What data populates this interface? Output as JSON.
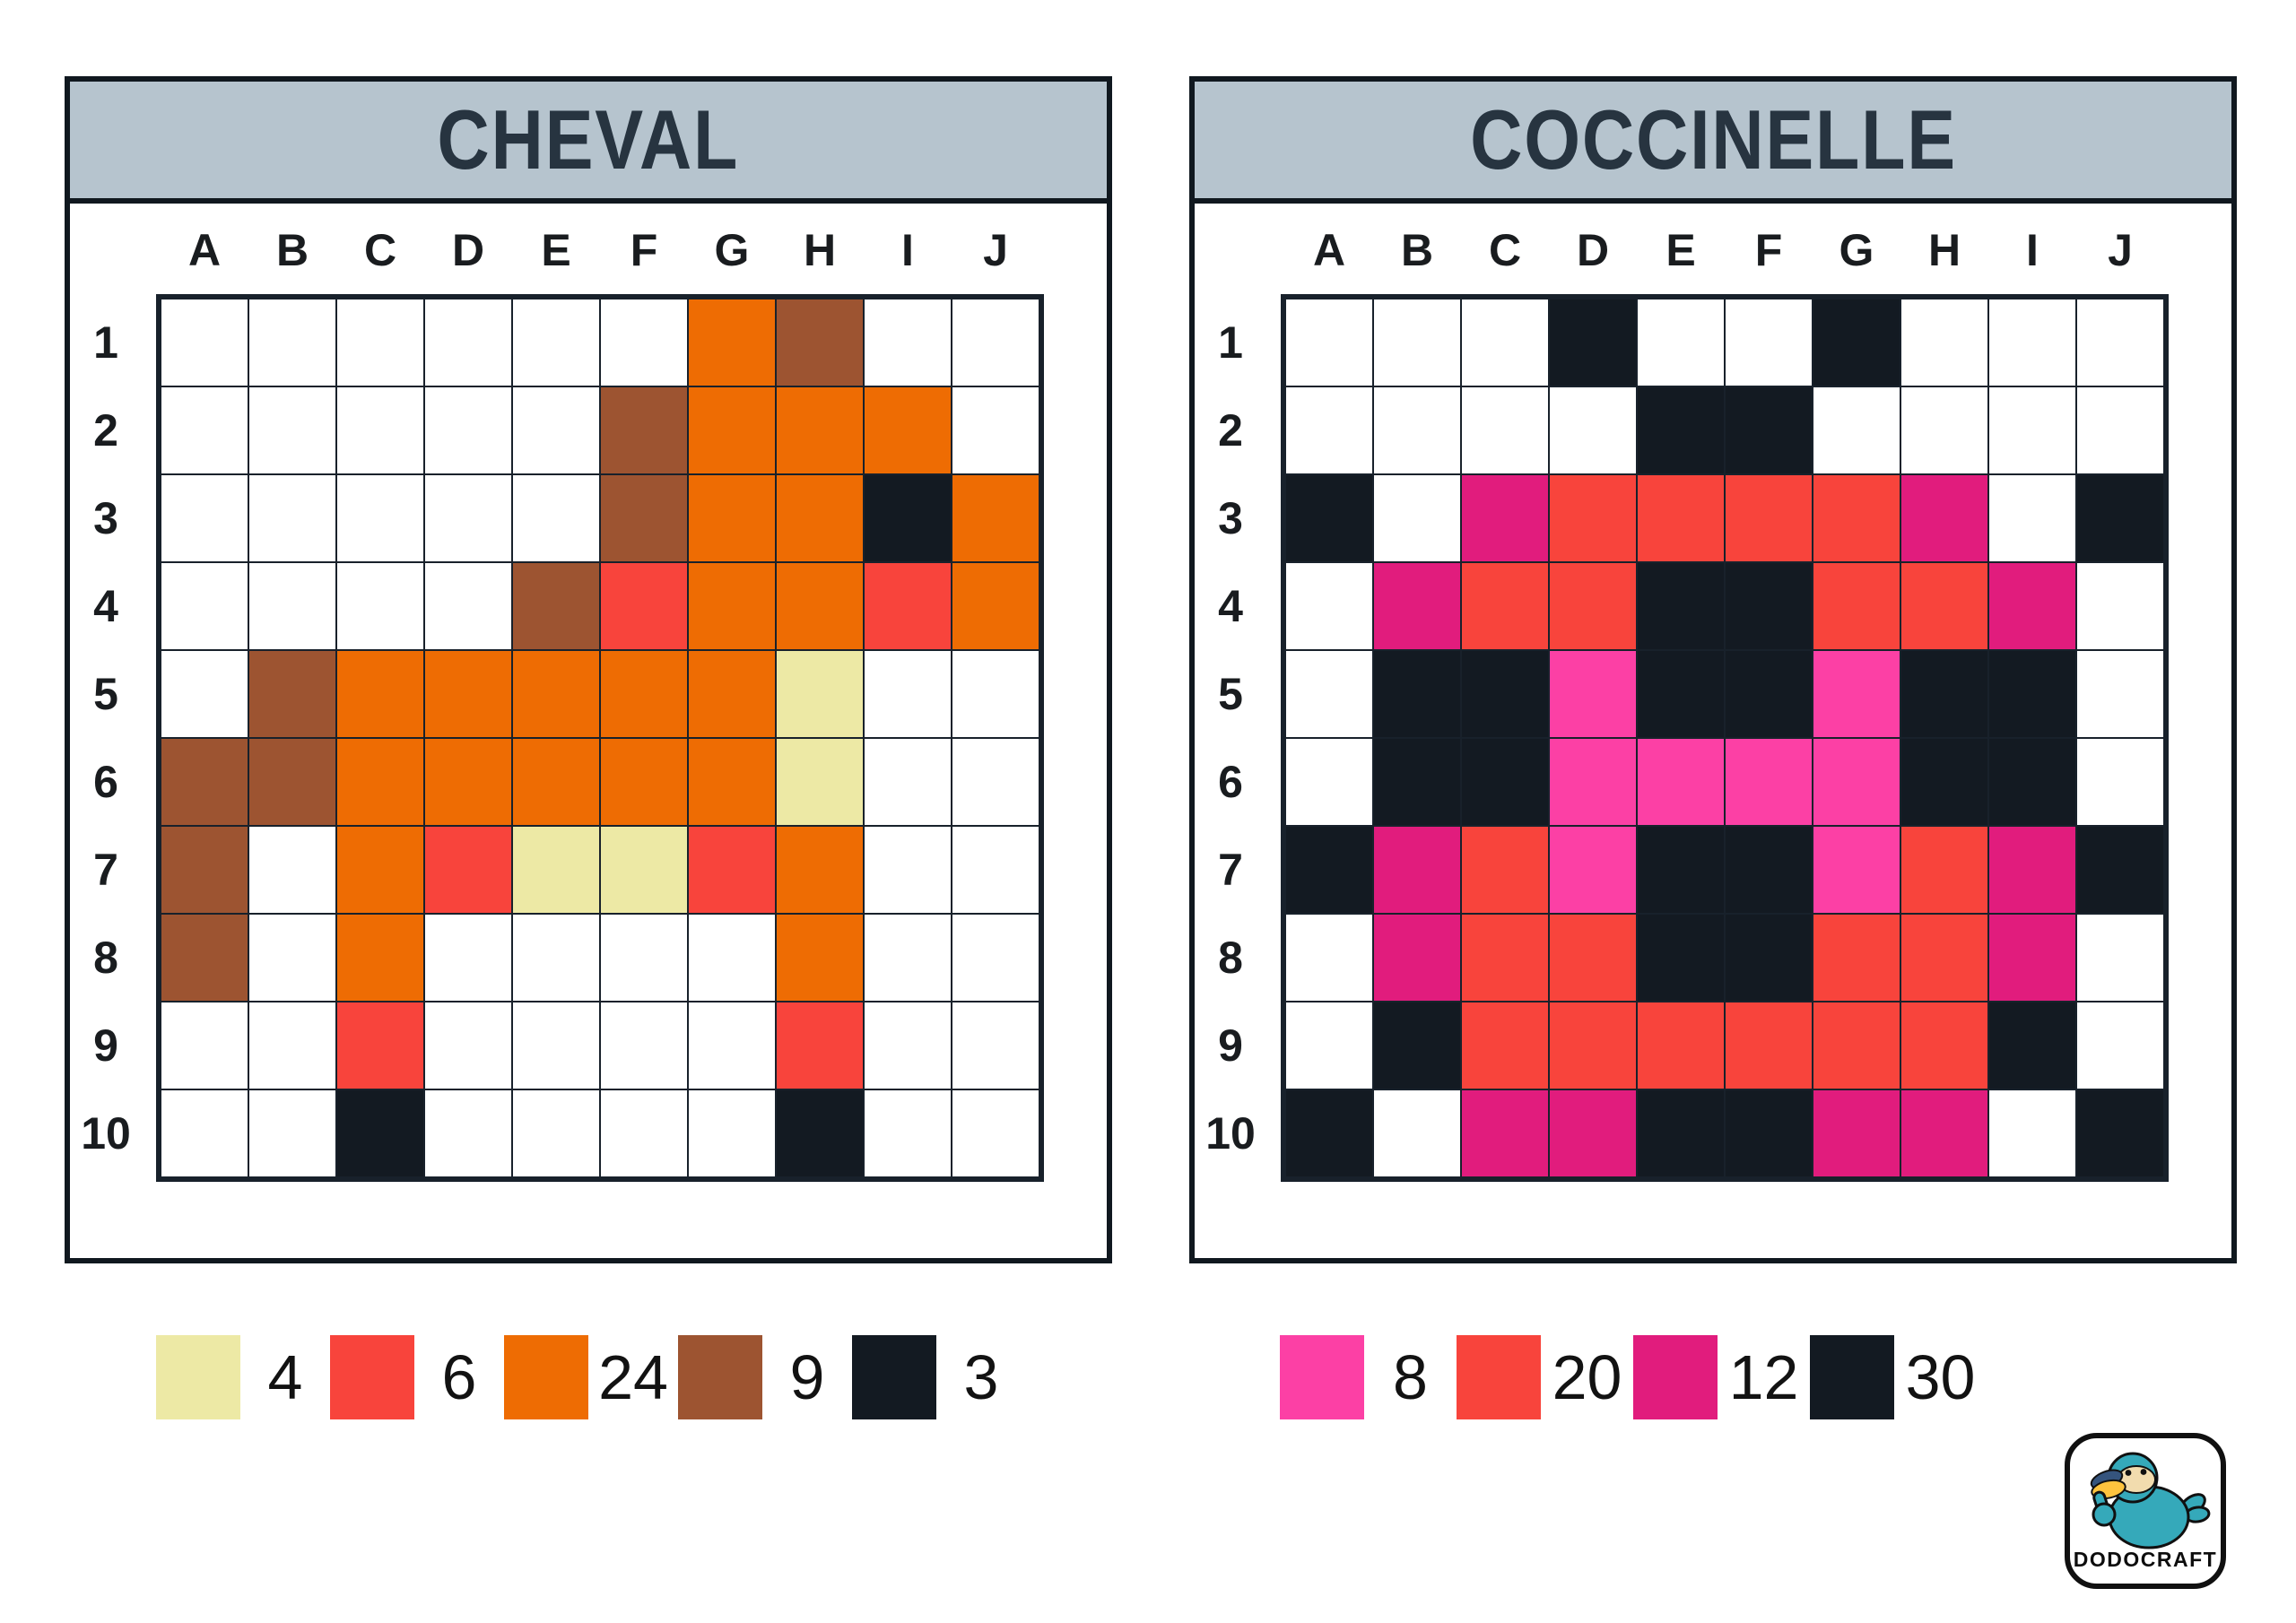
{
  "panels": [
    {
      "title": "CHEVAL",
      "title_bg": "#b6c4ce",
      "title_color": "#273440",
      "columns": [
        "A",
        "B",
        "C",
        "D",
        "E",
        "F",
        "G",
        "H",
        "I",
        "J"
      ],
      "rows": [
        "1",
        "2",
        "3",
        "4",
        "5",
        "6",
        "7",
        "8",
        "9",
        "10"
      ],
      "palette": {
        "cream": "#ede9a5",
        "red": "#f8443c",
        "orange": "#ee6c03",
        "brown": "#9d5431",
        "black": "#131a22"
      },
      "cells": [
        [
          "",
          "",
          "",
          "",
          "",
          "",
          "orange",
          "brown",
          "",
          ""
        ],
        [
          "",
          "",
          "",
          "",
          "",
          "brown",
          "orange",
          "orange",
          "orange",
          ""
        ],
        [
          "",
          "",
          "",
          "",
          "",
          "brown",
          "orange",
          "orange",
          "black",
          "orange"
        ],
        [
          "",
          "",
          "",
          "",
          "brown",
          "red",
          "orange",
          "orange",
          "red",
          "orange"
        ],
        [
          "",
          "brown",
          "orange",
          "orange",
          "orange",
          "orange",
          "orange",
          "cream",
          "",
          ""
        ],
        [
          "brown",
          "brown",
          "orange",
          "orange",
          "orange",
          "orange",
          "orange",
          "cream",
          "",
          ""
        ],
        [
          "brown",
          "",
          "orange",
          "red",
          "cream",
          "cream",
          "red",
          "orange",
          "",
          ""
        ],
        [
          "brown",
          "",
          "orange",
          "",
          "",
          "",
          "",
          "orange",
          "",
          ""
        ],
        [
          "",
          "",
          "red",
          "",
          "",
          "",
          "",
          "red",
          "",
          ""
        ],
        [
          "",
          "",
          "black",
          "",
          "",
          "",
          "",
          "black",
          "",
          ""
        ]
      ],
      "legend": [
        {
          "color": "cream",
          "count": "4"
        },
        {
          "color": "red",
          "count": "6"
        },
        {
          "color": "orange",
          "count": "24"
        },
        {
          "color": "brown",
          "count": "9"
        },
        {
          "color": "black",
          "count": "3"
        }
      ]
    },
    {
      "title": "COCCINELLE",
      "title_bg": "#b6c4ce",
      "title_color": "#273440",
      "columns": [
        "A",
        "B",
        "C",
        "D",
        "E",
        "F",
        "G",
        "H",
        "I",
        "J"
      ],
      "rows": [
        "1",
        "2",
        "3",
        "4",
        "5",
        "6",
        "7",
        "8",
        "9",
        "10"
      ],
      "palette": {
        "pink": "#fc40a5",
        "red": "#f8443c",
        "magenta": "#e11c7d",
        "black": "#131a22"
      },
      "cells": [
        [
          "",
          "",
          "",
          "black",
          "",
          "",
          "black",
          "",
          "",
          ""
        ],
        [
          "",
          "",
          "",
          "",
          "black",
          "black",
          "",
          "",
          "",
          ""
        ],
        [
          "black",
          "",
          "magenta",
          "red",
          "red",
          "red",
          "red",
          "magenta",
          "",
          "black"
        ],
        [
          "",
          "magenta",
          "red",
          "red",
          "black",
          "black",
          "red",
          "red",
          "magenta",
          ""
        ],
        [
          "",
          "black",
          "black",
          "pink",
          "black",
          "black",
          "pink",
          "black",
          "black",
          ""
        ],
        [
          "",
          "black",
          "black",
          "pink",
          "pink",
          "pink",
          "pink",
          "black",
          "black",
          ""
        ],
        [
          "black",
          "magenta",
          "red",
          "pink",
          "black",
          "black",
          "pink",
          "red",
          "magenta",
          "black"
        ],
        [
          "",
          "magenta",
          "red",
          "red",
          "black",
          "black",
          "red",
          "red",
          "magenta",
          ""
        ],
        [
          "",
          "black",
          "red",
          "red",
          "red",
          "red",
          "red",
          "red",
          "black",
          ""
        ],
        [
          "black",
          "",
          "magenta",
          "magenta",
          "black",
          "black",
          "magenta",
          "magenta",
          "",
          "black"
        ]
      ],
      "legend": [
        {
          "color": "pink",
          "count": "8"
        },
        {
          "color": "red",
          "count": "20"
        },
        {
          "color": "magenta",
          "count": "12"
        },
        {
          "color": "black",
          "count": "30"
        }
      ]
    }
  ],
  "logo": {
    "text": "DODOCRAFT",
    "colors": {
      "teal": "#35a9ba",
      "cream": "#f2dcae",
      "yellow": "#fec33e",
      "navy": "#35547d",
      "eye": "#101010",
      "text": "#0d0d0d"
    }
  }
}
